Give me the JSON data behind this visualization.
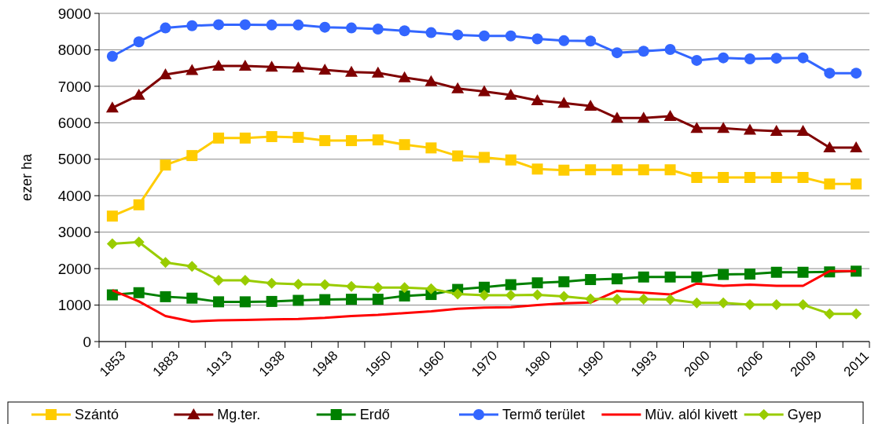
{
  "chart_data": {
    "type": "line",
    "ylabel": "ezer ha",
    "categories": [
      "1853",
      null,
      "1883",
      null,
      "1913",
      null,
      "1938",
      null,
      "1948",
      null,
      "1950",
      null,
      "1960",
      null,
      "1970",
      null,
      "1980",
      null,
      "1990",
      null,
      "1993",
      null,
      "2000",
      null,
      "2006",
      null,
      "2009",
      null,
      "2011"
    ],
    "series": [
      {
        "name": "Szántó",
        "color": "#ffcc00",
        "marker": "square",
        "values": [
          3440,
          3750,
          4840,
          5100,
          5580,
          5580,
          5620,
          5600,
          5510,
          5510,
          5530,
          5400,
          5310,
          5090,
          5050,
          4980,
          4730,
          4700,
          4710,
          4710,
          4710,
          4710,
          4500,
          4500,
          4500,
          4500,
          4500,
          4320,
          4320
        ]
      },
      {
        "name": "Mg.ter.",
        "color": "#7f0000",
        "marker": "triangle",
        "values": [
          6410,
          6760,
          7320,
          7440,
          7560,
          7560,
          7530,
          7510,
          7450,
          7390,
          7370,
          7240,
          7130,
          6940,
          6860,
          6760,
          6610,
          6540,
          6460,
          6130,
          6130,
          6180,
          5850,
          5850,
          5800,
          5770,
          5770,
          5320,
          5320
        ]
      },
      {
        "name": "Erdő",
        "color": "#008000",
        "marker": "square",
        "values": [
          1280,
          1340,
          1230,
          1190,
          1090,
          1090,
          1100,
          1130,
          1150,
          1160,
          1160,
          1250,
          1290,
          1430,
          1490,
          1560,
          1610,
          1640,
          1700,
          1720,
          1770,
          1770,
          1770,
          1840,
          1850,
          1900,
          1900,
          1910,
          1930
        ]
      },
      {
        "name": "Termő terület",
        "color": "#3366ff",
        "marker": "circle",
        "values": [
          7820,
          8220,
          8600,
          8660,
          8690,
          8690,
          8680,
          8680,
          8620,
          8600,
          8570,
          8520,
          8470,
          8410,
          8380,
          8380,
          8300,
          8250,
          8240,
          7920,
          7960,
          8010,
          7710,
          7780,
          7750,
          7770,
          7780,
          7360,
          7360
        ]
      },
      {
        "name": "Müv. alól kivett",
        "color": "#ff0000",
        "marker": "none",
        "values": [
          1410,
          1100,
          700,
          550,
          580,
          590,
          610,
          620,
          650,
          700,
          730,
          780,
          830,
          900,
          930,
          940,
          1000,
          1050,
          1070,
          1390,
          1340,
          1290,
          1590,
          1530,
          1560,
          1530,
          1530,
          1930,
          1930
        ]
      },
      {
        "name": "Gyep",
        "color": "#99cc00",
        "marker": "diamond",
        "values": [
          2680,
          2730,
          2170,
          2060,
          1680,
          1680,
          1600,
          1570,
          1560,
          1510,
          1480,
          1480,
          1450,
          1300,
          1270,
          1270,
          1280,
          1240,
          1170,
          1160,
          1160,
          1150,
          1060,
          1060,
          1010,
          1010,
          1010,
          760,
          760
        ]
      }
    ],
    "ylim": [
      0,
      9000
    ],
    "yticks": [
      0,
      1000,
      2000,
      3000,
      4000,
      5000,
      6000,
      7000,
      8000,
      9000
    ],
    "grid": "y",
    "legend": "bottom"
  }
}
